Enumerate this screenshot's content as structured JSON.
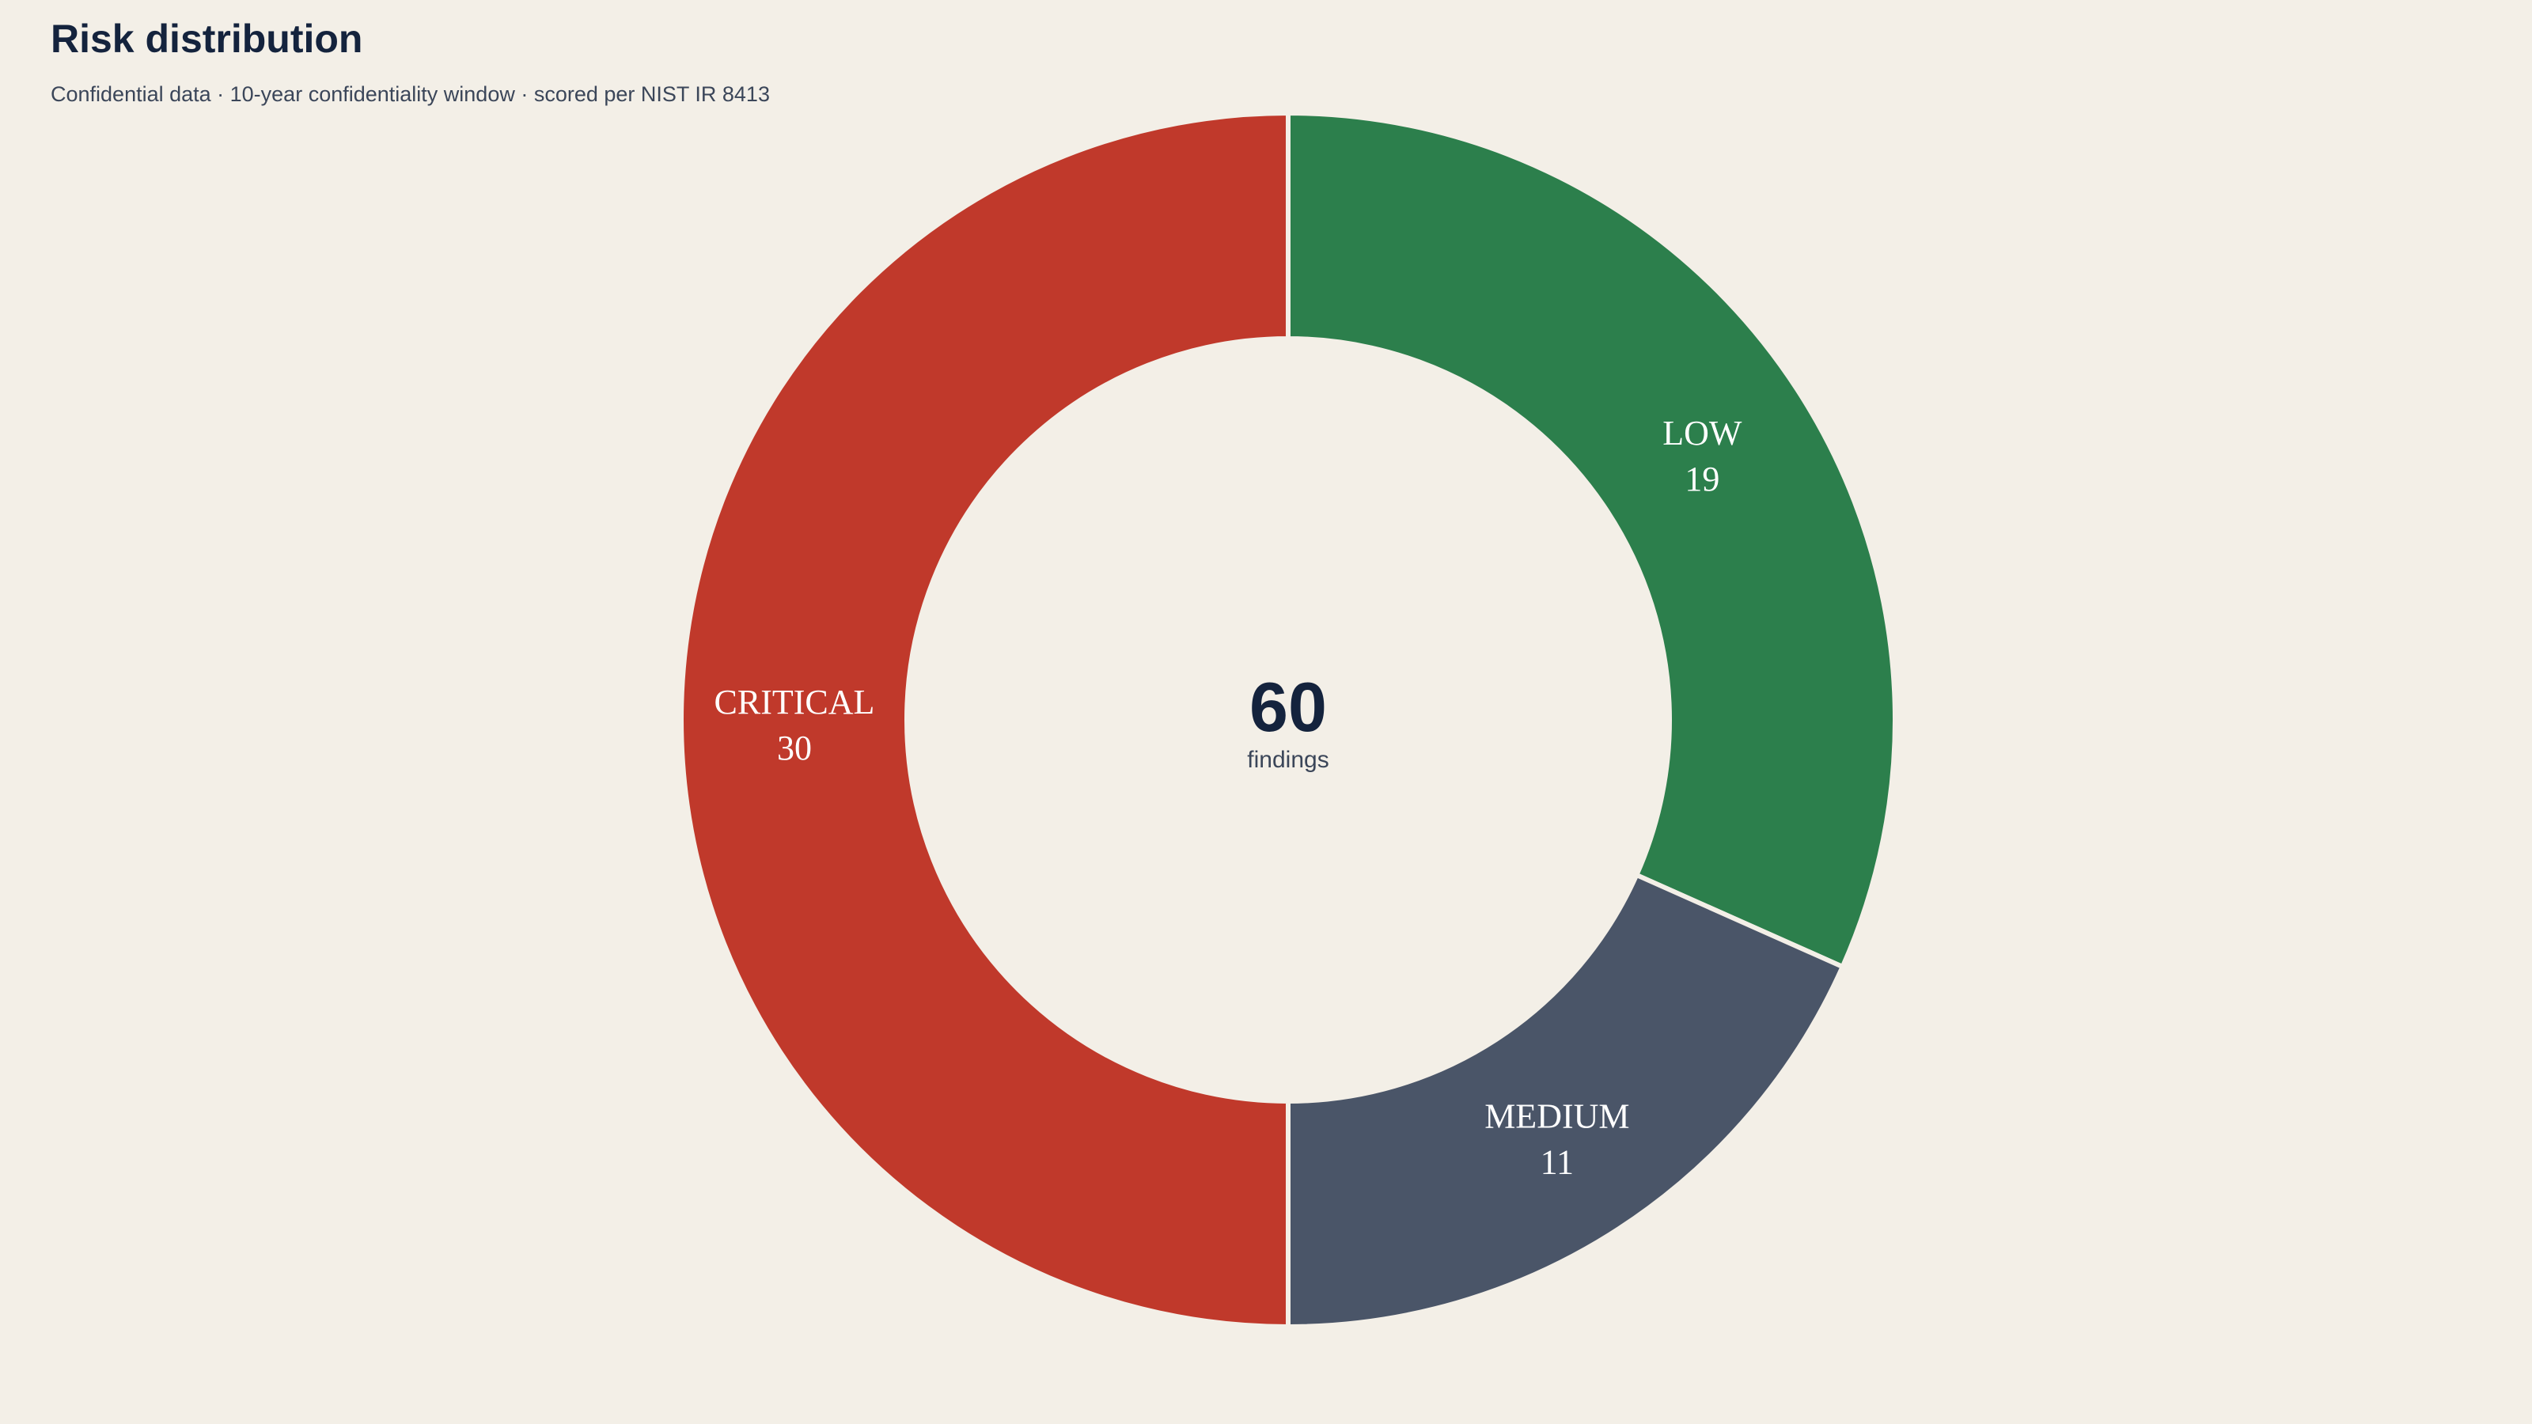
{
  "header": {
    "title": "Risk distribution",
    "subtitle": "Confidential data · 10-year confidentiality window · scored per NIST IR 8413"
  },
  "chart_data": {
    "type": "pie",
    "variant": "donut",
    "start": "top",
    "direction": "clockwise",
    "slices": [
      {
        "label": "LOW",
        "value": 19,
        "color": "#2c7f4c"
      },
      {
        "label": "MEDIUM",
        "value": 11,
        "color": "#4a5568"
      },
      {
        "label": "CRITICAL",
        "value": 30,
        "color": "#c0392b"
      }
    ],
    "center": {
      "value": "60",
      "label": "findings"
    },
    "separator_color": "#f3efe7"
  }
}
